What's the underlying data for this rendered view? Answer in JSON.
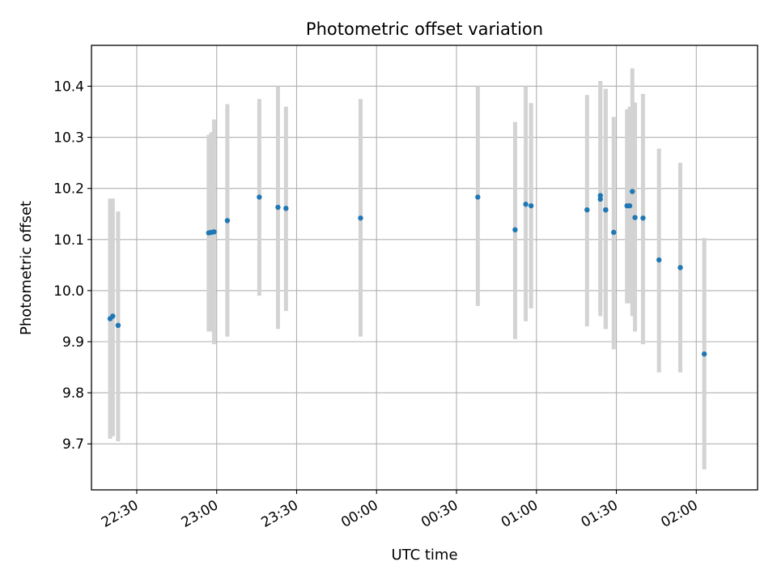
{
  "chart_data": {
    "type": "scatter",
    "title": "Photometric offset variation",
    "xlabel": "UTC time",
    "ylabel": "Photometric offset",
    "xlim": [
      "22:13",
      "02:23"
    ],
    "ylim": [
      9.61,
      10.48
    ],
    "x_ticks": [
      "22:30",
      "23:00",
      "23:30",
      "00:00",
      "00:30",
      "01:00",
      "01:30",
      "02:00"
    ],
    "y_ticks": [
      "9.7",
      "9.8",
      "9.9",
      "10.0",
      "10.1",
      "10.2",
      "10.3",
      "10.4"
    ],
    "grid": true,
    "point_color": "#1f77b4",
    "errorbar_color": "#d3d3d3",
    "points": [
      {
        "x": "22:20",
        "y": 9.945,
        "yerr_low": 9.71,
        "yerr_high": 10.18
      },
      {
        "x": "22:21",
        "y": 9.95,
        "yerr_low": 9.715,
        "yerr_high": 10.18
      },
      {
        "x": "22:23",
        "y": 9.932,
        "yerr_low": 9.705,
        "yerr_high": 10.155
      },
      {
        "x": "22:57",
        "y": 10.113,
        "yerr_low": 9.92,
        "yerr_high": 10.305
      },
      {
        "x": "22:58",
        "y": 10.114,
        "yerr_low": 9.92,
        "yerr_high": 10.31
      },
      {
        "x": "22:59",
        "y": 10.115,
        "yerr_low": 9.895,
        "yerr_high": 10.335
      },
      {
        "x": "23:04",
        "y": 10.137,
        "yerr_low": 9.91,
        "yerr_high": 10.365
      },
      {
        "x": "23:16",
        "y": 10.183,
        "yerr_low": 9.99,
        "yerr_high": 10.375
      },
      {
        "x": "23:23",
        "y": 10.163,
        "yerr_low": 9.925,
        "yerr_high": 10.4
      },
      {
        "x": "23:26",
        "y": 10.161,
        "yerr_low": 9.96,
        "yerr_high": 10.36
      },
      {
        "x": "23:54",
        "y": 10.142,
        "yerr_low": 9.91,
        "yerr_high": 10.375
      },
      {
        "x": "00:38",
        "y": 10.183,
        "yerr_low": 9.97,
        "yerr_high": 10.4
      },
      {
        "x": "00:52",
        "y": 10.119,
        "yerr_low": 9.905,
        "yerr_high": 10.33
      },
      {
        "x": "00:56",
        "y": 10.169,
        "yerr_low": 9.94,
        "yerr_high": 10.4
      },
      {
        "x": "00:58",
        "y": 10.166,
        "yerr_low": 9.965,
        "yerr_high": 10.367
      },
      {
        "x": "01:19",
        "y": 10.158,
        "yerr_low": 9.93,
        "yerr_high": 10.383
      },
      {
        "x": "01:24",
        "y": 10.179,
        "yerr_low": 9.95,
        "yerr_high": 10.41
      },
      {
        "x": "01:24",
        "y": 10.186,
        "yerr_low": 9.96,
        "yerr_high": 10.41
      },
      {
        "x": "01:26",
        "y": 10.158,
        "yerr_low": 9.925,
        "yerr_high": 10.395
      },
      {
        "x": "01:26",
        "y": 10.158,
        "yerr_low": 9.925,
        "yerr_high": 10.39
      },
      {
        "x": "01:29",
        "y": 10.114,
        "yerr_low": 9.885,
        "yerr_high": 10.34
      },
      {
        "x": "01:34",
        "y": 10.166,
        "yerr_low": 9.975,
        "yerr_high": 10.355
      },
      {
        "x": "01:35",
        "y": 10.166,
        "yerr_low": 9.975,
        "yerr_high": 10.36
      },
      {
        "x": "01:36",
        "y": 10.194,
        "yerr_low": 9.95,
        "yerr_high": 10.435
      },
      {
        "x": "01:37",
        "y": 10.143,
        "yerr_low": 9.92,
        "yerr_high": 10.368
      },
      {
        "x": "01:40",
        "y": 10.142,
        "yerr_low": 9.895,
        "yerr_high": 10.385
      },
      {
        "x": "01:46",
        "y": 10.06,
        "yerr_low": 9.84,
        "yerr_high": 10.278
      },
      {
        "x": "01:54",
        "y": 10.045,
        "yerr_low": 9.84,
        "yerr_high": 10.25
      },
      {
        "x": "02:03",
        "y": 9.876,
        "yerr_low": 9.65,
        "yerr_high": 10.103
      }
    ]
  }
}
